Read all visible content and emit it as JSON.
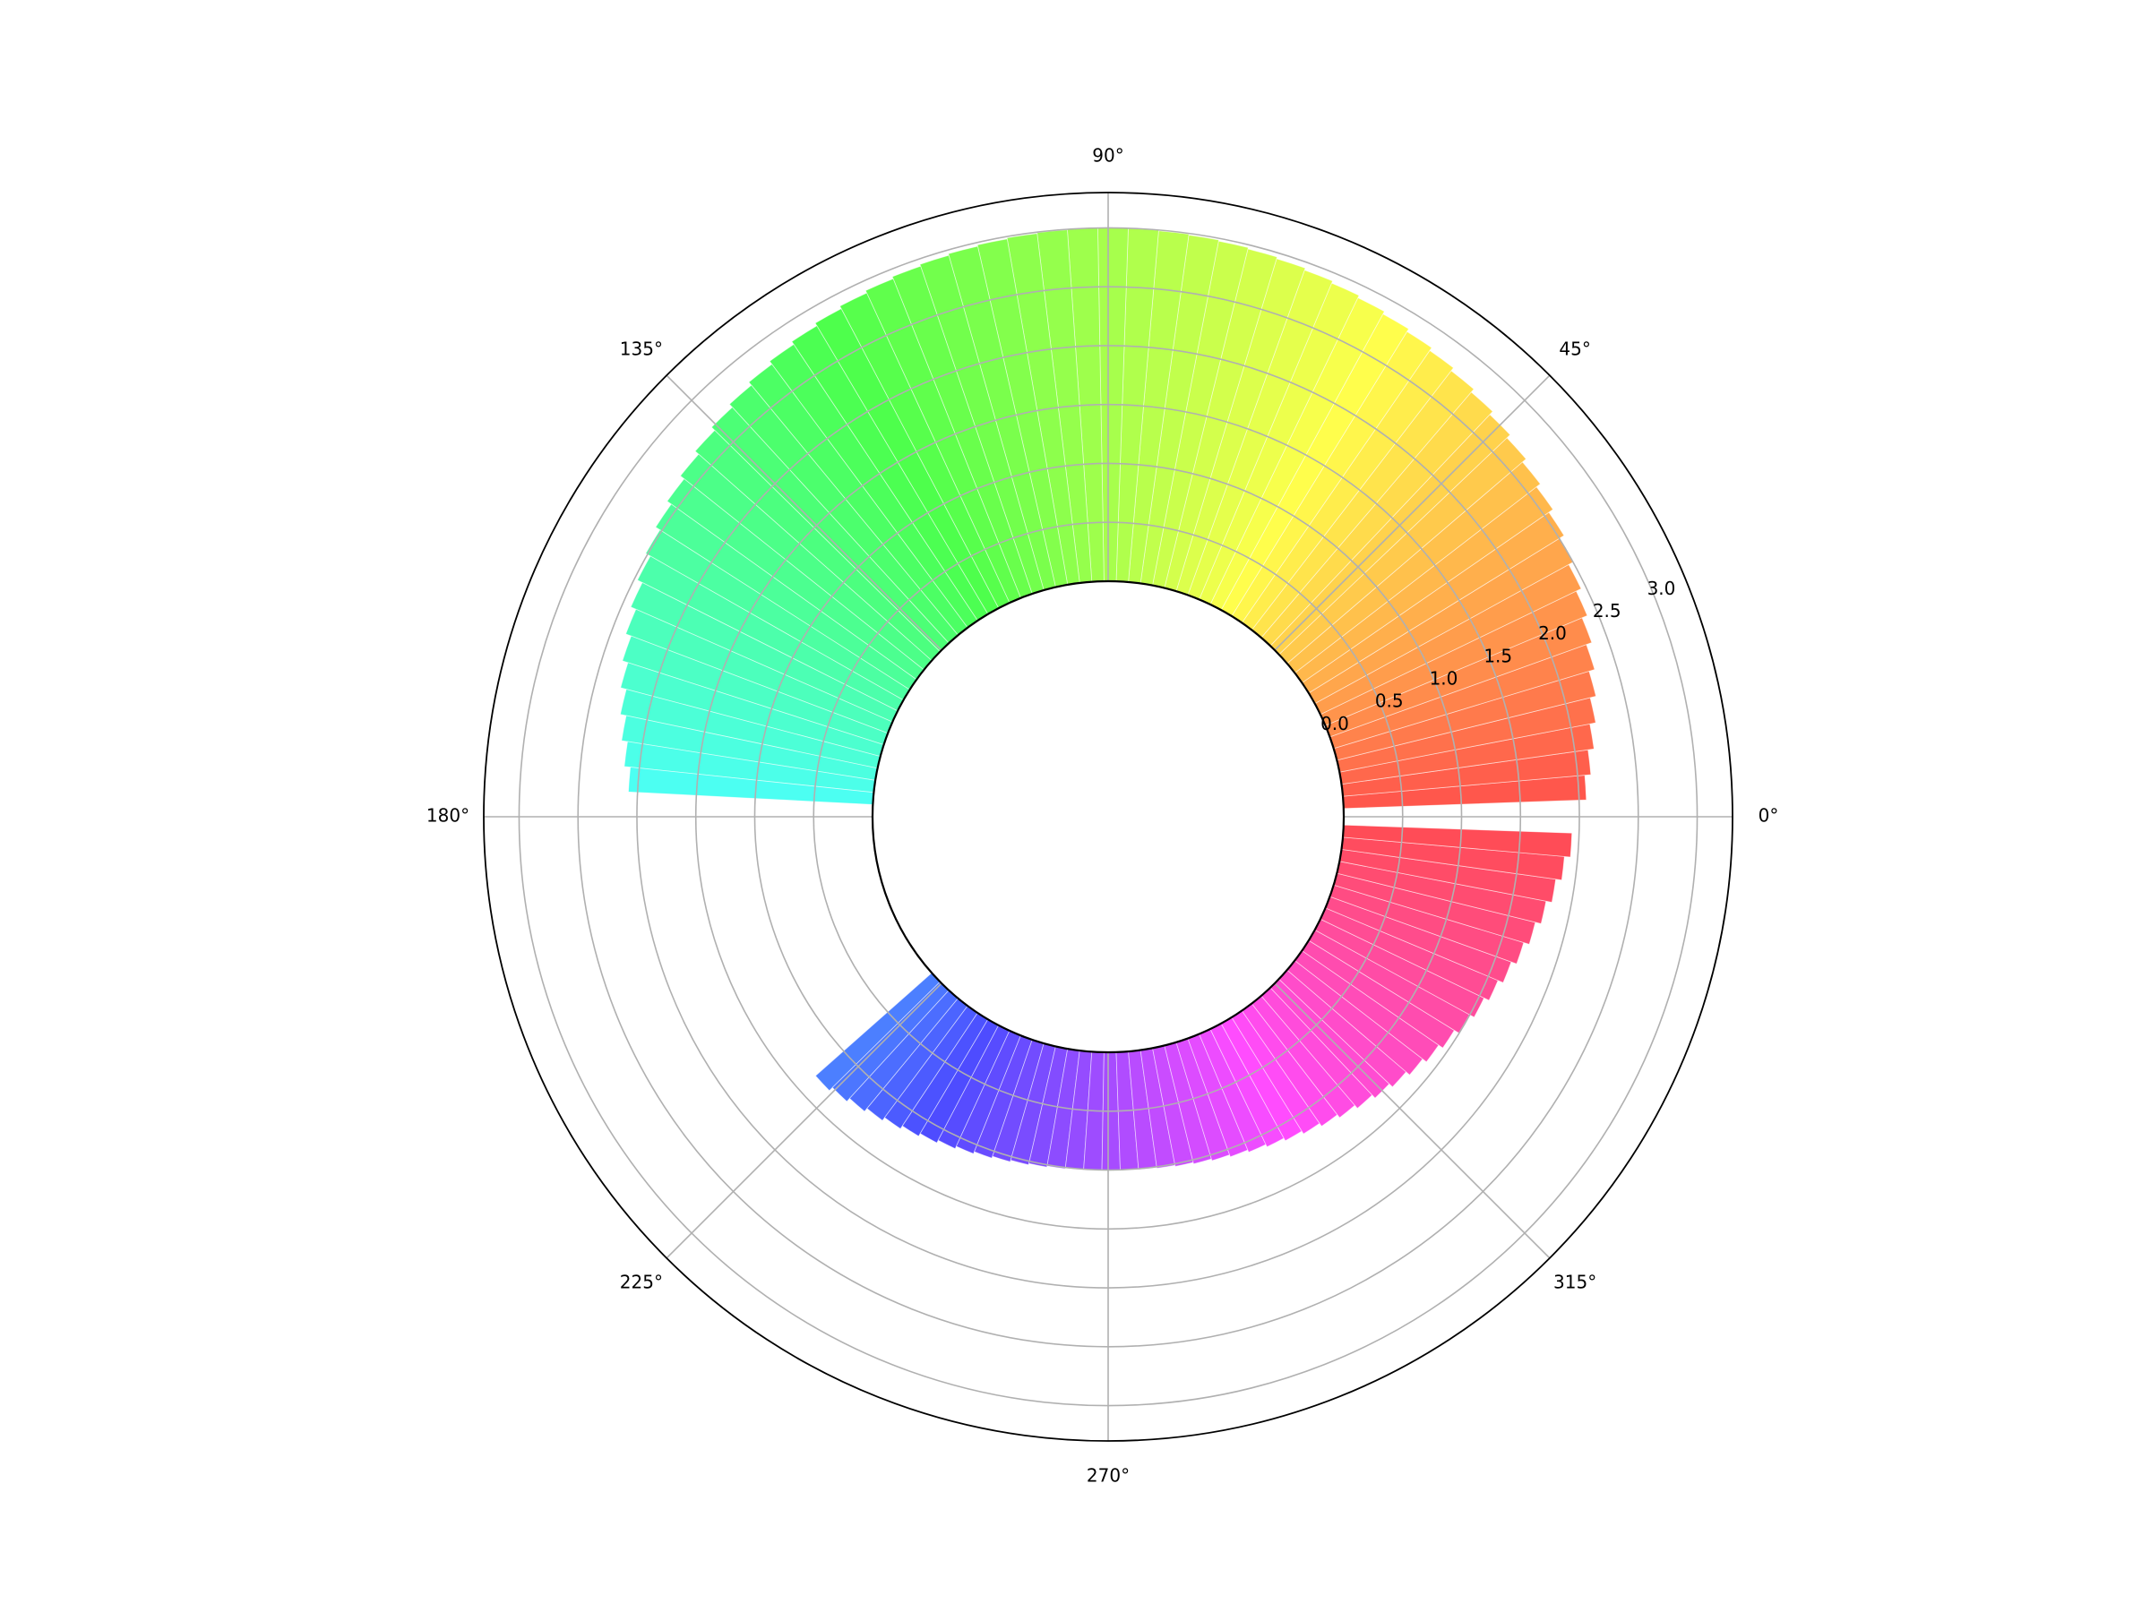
{
  "chart_data": {
    "type": "polar_bar",
    "title": "",
    "angle_ticks": [
      "0°",
      "45°",
      "90°",
      "135°",
      "180°",
      "225°",
      "270°",
      "315°"
    ],
    "radial_ticks": [
      "0.0",
      "0.5",
      "1.0",
      "1.5",
      "2.0",
      "2.5",
      "3.0"
    ],
    "radial_ticks_values": [
      0.0,
      0.5,
      1.0,
      1.5,
      2.0,
      2.5,
      3.0
    ],
    "radial_origin": -2.0,
    "radial_max": 3.3,
    "radial_label_angle_deg": 22.5,
    "grid": true,
    "bar_bottom": 0.0,
    "bar_alpha": 0.7,
    "colormap": "hsv",
    "bars": {
      "count": 120,
      "theta_start_deg": 3.5,
      "theta_end_deg": 356.5,
      "gap_deg": [
        176.5,
        221.0
      ],
      "height_fn": "2.0 + sin(theta)",
      "height_range": [
        1.0,
        3.0
      ]
    }
  }
}
